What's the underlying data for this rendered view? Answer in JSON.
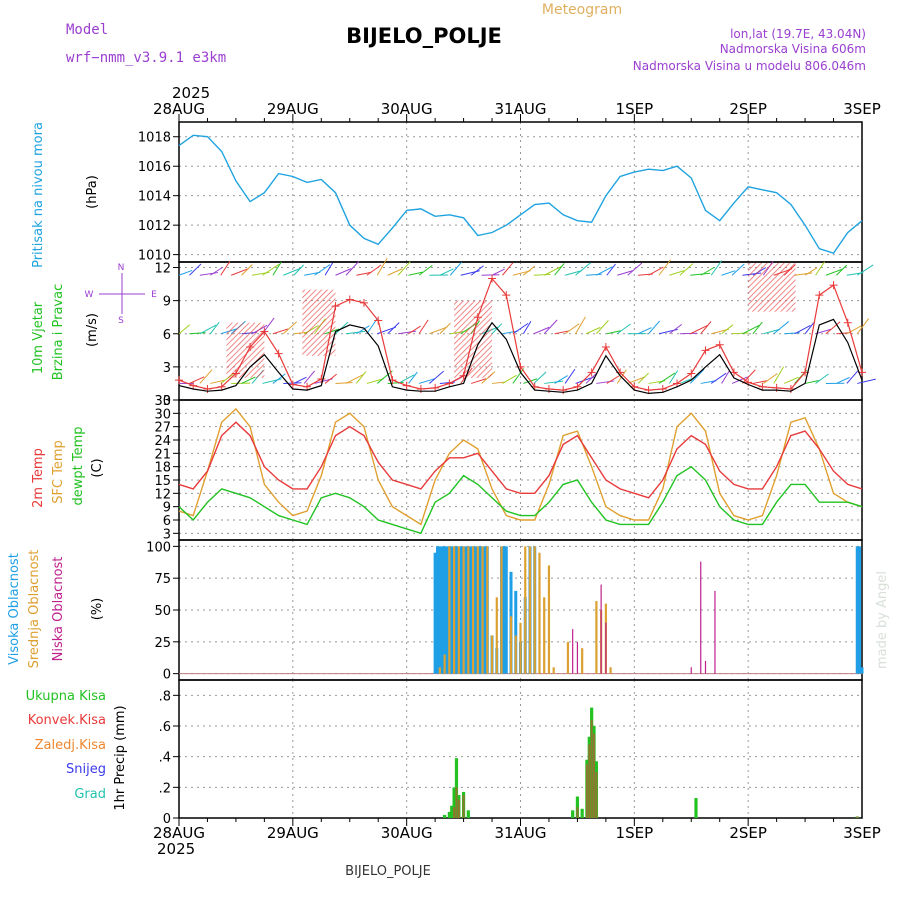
{
  "header": {
    "model_label": "Model",
    "model_name": "wrf−nmm_v3.9.1  e3km",
    "title": "BIJELO_POLJE",
    "product": "Meteogram",
    "lonlat": "lon,lat (19.7E, 43.04N)",
    "elevation": "Nadmorska Visina 606m",
    "model_elevation": "Nadmorska Visina u modelu 806.046m",
    "watermark": "made by Angel",
    "footer_station": "BIJELO_POLJE"
  },
  "colors": {
    "pressure": "#1fa3e0",
    "temp2m": "#e83a3a",
    "tempsfc": "#e0a030",
    "dewpt": "#22c222",
    "cloud_high": "#1f9fe6",
    "cloud_mid": "#dca030",
    "cloud_low": "#c0208c",
    "precip_total": "#22c222",
    "precip_conv": "#e83a3a",
    "precip_strat": "#ee8830",
    "snow": "#3a3aee",
    "graupel": "#22c2b0",
    "title_purple": "#9a3fd0"
  },
  "time_axis": {
    "year": "2025",
    "labels": [
      "28AUG",
      "29AUG",
      "30AUG",
      "31AUG",
      "1SEP",
      "2SEP",
      "3SEP"
    ]
  },
  "chart_data": [
    {
      "type": "line",
      "panel": "pressure",
      "title": "Pritisak na nivou mora",
      "ylabel": "(hPa)",
      "ylim": [
        1009.5,
        1019
      ],
      "yticks": [
        1010,
        1012,
        1014,
        1016,
        1018
      ],
      "x_hours": [
        0,
        3,
        6,
        9,
        12,
        15,
        18,
        21,
        24,
        27,
        30,
        33,
        36,
        39,
        42,
        45,
        48,
        51,
        54,
        57,
        60,
        63,
        66,
        69,
        72,
        75,
        78,
        81,
        84,
        87,
        90,
        93,
        96,
        99,
        102,
        105,
        108,
        111,
        114,
        117,
        120,
        123,
        126,
        129,
        132,
        135,
        138,
        141,
        144
      ],
      "series": [
        {
          "name": "MSL pressure",
          "values": [
            1017.4,
            1018.1,
            1018.0,
            1017.0,
            1015.0,
            1013.6,
            1014.2,
            1015.5,
            1015.3,
            1014.9,
            1015.1,
            1014.2,
            1012.0,
            1011.1,
            1010.7,
            1011.8,
            1013.0,
            1013.1,
            1012.6,
            1012.7,
            1012.5,
            1011.3,
            1011.5,
            1012.0,
            1012.7,
            1013.4,
            1013.5,
            1012.7,
            1012.3,
            1012.2,
            1014.0,
            1015.3,
            1015.6,
            1015.8,
            1015.7,
            1016.0,
            1015.2,
            1013.0,
            1012.3,
            1013.5,
            1014.6,
            1014.4,
            1014.2,
            1013.4,
            1012.0,
            1010.4,
            1010.1,
            1011.5,
            1012.3
          ]
        }
      ]
    },
    {
      "type": "line",
      "panel": "wind",
      "title": "10m Vjetar Brzina i Pravac",
      "ylabel": "(m/s)",
      "ylim": [
        0,
        12.5
      ],
      "yticks": [
        0,
        3,
        6,
        9,
        12
      ],
      "x_hours": [
        0,
        3,
        6,
        9,
        12,
        15,
        18,
        21,
        24,
        27,
        30,
        33,
        36,
        39,
        42,
        45,
        48,
        51,
        54,
        57,
        60,
        63,
        66,
        69,
        72,
        75,
        78,
        81,
        84,
        87,
        90,
        93,
        96,
        99,
        102,
        105,
        108,
        111,
        114,
        117,
        120,
        123,
        126,
        129,
        132,
        135,
        138,
        141,
        144
      ],
      "series": [
        {
          "name": "wind speed",
          "values": [
            1.3,
            1.0,
            0.8,
            0.9,
            1.3,
            3.0,
            4.1,
            2.5,
            1.0,
            0.9,
            1.3,
            6.2,
            6.8,
            6.5,
            4.9,
            1.2,
            0.9,
            0.8,
            0.8,
            1.2,
            1.5,
            5.0,
            7.0,
            5.5,
            2.5,
            0.9,
            0.8,
            0.7,
            0.9,
            1.5,
            4.0,
            2.2,
            0.9,
            0.6,
            0.7,
            1.2,
            1.8,
            3.0,
            4.1,
            2.0,
            1.4,
            0.9,
            0.9,
            0.8,
            1.5,
            6.8,
            7.3,
            5.2,
            1.8
          ]
        },
        {
          "name": "wind gust",
          "values": [
            1.8,
            1.3,
            1.0,
            1.2,
            2.4,
            4.8,
            6.2,
            4.2,
            1.4,
            1.2,
            1.9,
            8.5,
            9.1,
            8.8,
            7.2,
            1.8,
            1.3,
            1.0,
            1.1,
            1.5,
            2.2,
            7.5,
            11.0,
            9.5,
            3.0,
            1.2,
            1.0,
            0.9,
            1.2,
            2.5,
            4.8,
            2.5,
            1.2,
            0.9,
            1.0,
            1.5,
            2.4,
            4.5,
            5.0,
            2.5,
            1.6,
            1.2,
            1.1,
            1.0,
            2.5,
            9.5,
            10.4,
            7.0,
            2.5
          ]
        }
      ]
    },
    {
      "type": "line",
      "panel": "temperature",
      "title": "2m Temp / SFC Temp / dewpt Temp",
      "ylabel": "(C)",
      "ylim": [
        1.5,
        33
      ],
      "yticks": [
        3,
        6,
        9,
        12,
        15,
        18,
        21,
        24,
        27,
        30,
        33
      ],
      "x_hours": [
        0,
        3,
        6,
        9,
        12,
        15,
        18,
        21,
        24,
        27,
        30,
        33,
        36,
        39,
        42,
        45,
        48,
        51,
        54,
        57,
        60,
        63,
        66,
        69,
        72,
        75,
        78,
        81,
        84,
        87,
        90,
        93,
        96,
        99,
        102,
        105,
        108,
        111,
        114,
        117,
        120,
        123,
        126,
        129,
        132,
        135,
        138,
        141,
        144
      ],
      "series": [
        {
          "name": "2m Temp",
          "values": [
            14,
            13,
            17,
            25,
            28,
            25,
            18,
            15,
            13,
            13,
            18,
            25,
            27,
            25,
            19,
            15,
            14,
            13,
            17,
            20,
            20,
            21,
            17,
            13,
            12,
            12,
            16,
            23,
            25,
            20,
            15,
            13,
            12,
            11,
            15,
            22,
            25,
            23,
            17,
            14,
            13,
            13,
            18,
            25,
            26,
            22,
            17,
            14,
            13
          ]
        },
        {
          "name": "SFC Temp",
          "values": [
            8,
            7,
            17,
            28,
            31,
            27,
            14,
            10,
            7,
            8,
            16,
            28,
            30,
            27,
            15,
            9,
            7,
            5,
            15,
            21,
            24,
            22,
            13,
            7,
            6,
            6,
            14,
            25,
            26,
            18,
            9,
            7,
            6,
            6,
            13,
            27,
            30,
            26,
            12,
            7,
            6,
            7,
            16,
            28,
            29,
            22,
            12,
            10,
            9
          ]
        },
        {
          "name": "dewpt Temp",
          "values": [
            9,
            6,
            10,
            13,
            12,
            11,
            9,
            7,
            6,
            5,
            11,
            12,
            11,
            9,
            6,
            5,
            4,
            3,
            10,
            12,
            16,
            14,
            11,
            8,
            7,
            7,
            10,
            14,
            15,
            10,
            6,
            5,
            5,
            5,
            10,
            16,
            18,
            15,
            9,
            6,
            5,
            5,
            10,
            14,
            14,
            10,
            10,
            10,
            9
          ]
        }
      ]
    },
    {
      "type": "bar",
      "panel": "cloud",
      "title": "Visoka / Srednja / Niska Oblacnost",
      "ylabel": "(%)",
      "ylim": [
        -5,
        105
      ],
      "yticks": [
        0,
        25,
        50,
        75,
        100
      ],
      "series": [
        {
          "name": "Visoka Oblacnost",
          "x_hours": [
            54,
            54.5,
            55,
            55.5,
            56,
            56.5,
            57,
            57.5,
            58,
            58.5,
            59,
            59.5,
            60,
            60.5,
            61,
            61.5,
            62,
            62.5,
            63,
            63.5,
            64,
            64.5,
            65,
            66,
            67,
            68,
            68.5,
            69,
            70,
            71,
            72,
            73,
            74,
            75,
            143,
            143.5,
            144
          ],
          "values": [
            95,
            100,
            100,
            100,
            100,
            100,
            100,
            100,
            100,
            100,
            100,
            100,
            100,
            100,
            100,
            100,
            100,
            100,
            100,
            100,
            100,
            100,
            100,
            30,
            20,
            100,
            100,
            100,
            80,
            65,
            25,
            60,
            100,
            100,
            100,
            100,
            5
          ]
        },
        {
          "name": "Srednja Oblacnost",
          "x_hours": [
            55,
            56,
            57,
            58,
            59,
            60,
            61,
            62,
            63,
            64,
            65,
            66,
            67,
            68,
            70,
            71,
            72,
            73,
            74,
            75,
            76,
            77,
            78,
            79,
            82,
            85,
            88,
            89,
            90,
            91
          ],
          "values": [
            5,
            15,
            100,
            100,
            100,
            100,
            100,
            100,
            100,
            100,
            100,
            30,
            60,
            100,
            45,
            30,
            40,
            100,
            100,
            100,
            95,
            60,
            85,
            5,
            25,
            20,
            57,
            50,
            55,
            5
          ]
        },
        {
          "name": "Niska Oblacnost",
          "x_hours": [
            83,
            84,
            89,
            90,
            108,
            110,
            111,
            113
          ],
          "values": [
            35,
            25,
            70,
            40,
            5,
            88,
            10,
            65
          ]
        }
      ]
    },
    {
      "type": "bar",
      "panel": "precip",
      "title": "1hr Precip",
      "ylabel": "1hr Precip (mm)",
      "legend": [
        "Ukupna Kisa",
        "Konvek.Kisa",
        "Zaledj.Kisa",
        "Snijeg",
        "Grad"
      ],
      "ylim": [
        0,
        0.9
      ],
      "yticks": [
        0,
        0.2,
        0.4,
        0.6,
        0.8
      ],
      "series": [
        {
          "name": "Ukupna Kisa",
          "x_hours": [
            56,
            57,
            57.5,
            58,
            58.5,
            59,
            60,
            61,
            83,
            84,
            85,
            86,
            86.5,
            87,
            87.5,
            88,
            109,
            143
          ],
          "values": [
            0.02,
            0.04,
            0.08,
            0.2,
            0.39,
            0.15,
            0.17,
            0.05,
            0.05,
            0.14,
            0.06,
            0.38,
            0.53,
            0.72,
            0.6,
            0.37,
            0.13,
            0.01
          ]
        },
        {
          "name": "Konvek.Kisa",
          "x_hours": [
            58,
            58.5,
            59,
            60,
            84,
            86,
            86.5,
            87,
            87.5,
            88,
            143
          ],
          "values": [
            0.07,
            0.2,
            0.12,
            0.15,
            0.07,
            0.35,
            0.48,
            0.64,
            0.55,
            0.3,
            0.01
          ]
        }
      ]
    }
  ]
}
